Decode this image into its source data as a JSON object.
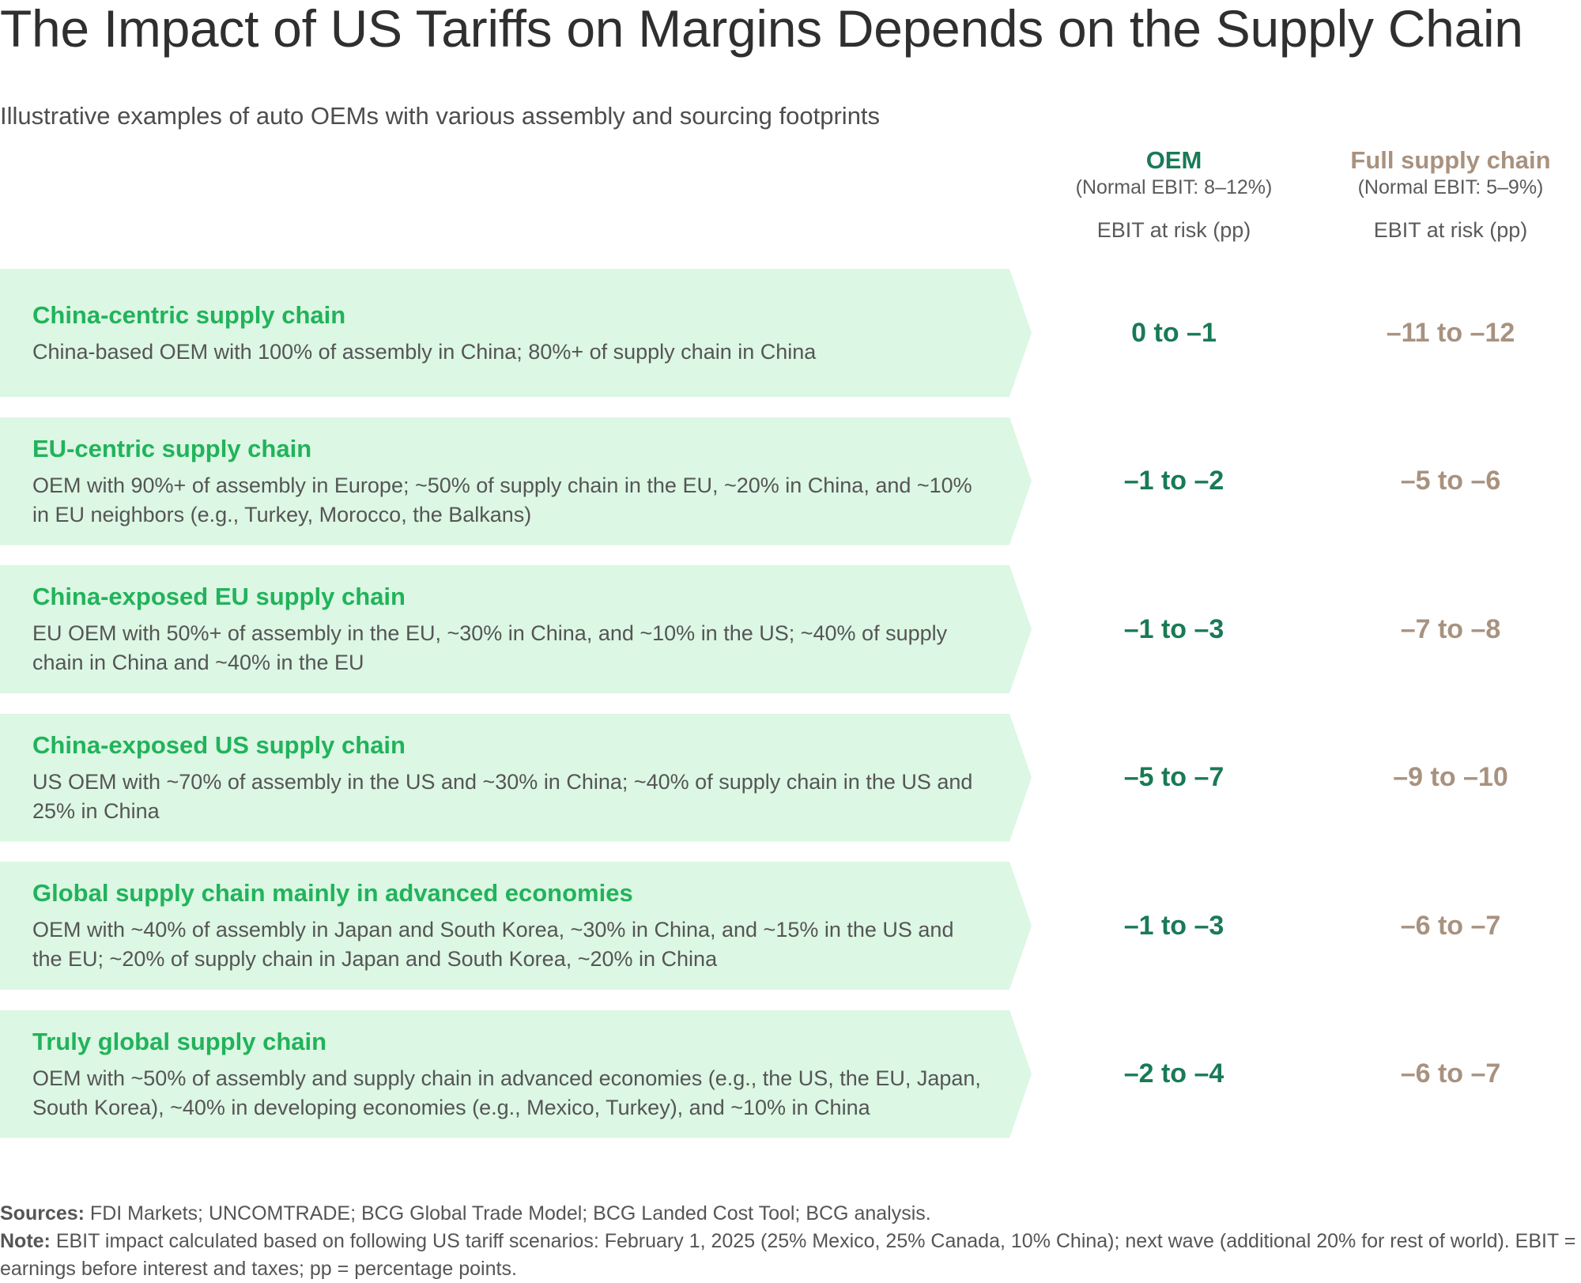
{
  "title": "The Impact of US Tariffs on Margins Depends on the Supply Chain",
  "subtitle": "Illustrative examples of auto OEMs with various assembly and sourcing footprints",
  "colors": {
    "oem": "#197a56",
    "full": "#a8927f",
    "row_title": "#21b35b",
    "band": "#dcf7e3"
  },
  "columns": [
    {
      "name": "OEM",
      "normal": "(Normal EBIT: 8–12%)",
      "metric": "EBIT at risk (pp)"
    },
    {
      "name": "Full supply chain",
      "normal": "(Normal EBIT: 5–9%)",
      "metric": "EBIT at risk (pp)"
    }
  ],
  "rows": [
    {
      "title": "China-centric supply chain",
      "desc": "China-based OEM with 100% of assembly in China; 80%+ of supply chain in China",
      "oem": "0 to –1",
      "full": "–11 to –12"
    },
    {
      "title": "EU-centric supply chain",
      "desc": "OEM with 90%+ of assembly in Europe; ~50% of supply chain in the EU, ~20% in China, and ~10% in EU neighbors (e.g., Turkey, Morocco, the Balkans)",
      "oem": "–1 to –2",
      "full": "–5 to –6"
    },
    {
      "title": "China-exposed EU supply chain",
      "desc": "EU OEM with 50%+ of assembly in the EU, ~30% in China, and ~10% in the US; ~40% of supply chain in China and ~40% in the EU",
      "oem": "–1 to –3",
      "full": "–7 to –8"
    },
    {
      "title": "China-exposed US supply chain",
      "desc": "US OEM with ~70% of assembly in the US and ~30% in China; ~40% of supply chain in the US and 25% in China",
      "oem": "–5 to –7",
      "full": "–9 to –10"
    },
    {
      "title": "Global supply chain mainly in advanced economies",
      "desc": "OEM with ~40% of assembly in Japan and South Korea, ~30% in China, and ~15% in the US and the EU; ~20% of supply chain in Japan and South Korea, ~20% in China",
      "oem": "–1 to –3",
      "full": "–6 to –7"
    },
    {
      "title": "Truly global supply chain",
      "desc": "OEM with ~50% of assembly and supply chain in advanced economies (e.g., the US, the EU, Japan, South Korea), ~40% in developing economies (e.g., Mexico, Turkey), and ~10% in China",
      "oem": "–2 to –4",
      "full": "–6 to –7"
    }
  ],
  "footer": {
    "sources_label": "Sources:",
    "sources_text": " FDI Markets; UNCOMTRADE; BCG Global Trade Model; BCG Landed Cost Tool; BCG analysis.",
    "note_label": "Note:",
    "note_text": " EBIT impact calculated based on following US tariff scenarios: February 1, 2025 (25% Mexico, 25% Canada, 10% China); next wave (additional 20% for rest of world). EBIT = earnings before interest and taxes; pp = percentage points."
  },
  "chart_data": {
    "type": "table",
    "title": "The Impact of US Tariffs on Margins Depends on the Supply Chain",
    "subtitle": "Illustrative examples of auto OEMs with various assembly and sourcing footprints",
    "columns": [
      "Supply chain archetype",
      "OEM EBIT at risk (pp)",
      "Full supply chain EBIT at risk (pp)"
    ],
    "column_notes": {
      "OEM": "Normal EBIT: 8–12%",
      "Full supply chain": "Normal EBIT: 5–9%"
    },
    "rows": [
      {
        "archetype": "China-centric supply chain",
        "oem_range": [
          0,
          -1
        ],
        "full_range": [
          -11,
          -12
        ]
      },
      {
        "archetype": "EU-centric supply chain",
        "oem_range": [
          -1,
          -2
        ],
        "full_range": [
          -5,
          -6
        ]
      },
      {
        "archetype": "China-exposed EU supply chain",
        "oem_range": [
          -1,
          -3
        ],
        "full_range": [
          -7,
          -8
        ]
      },
      {
        "archetype": "China-exposed US supply chain",
        "oem_range": [
          -5,
          -7
        ],
        "full_range": [
          -9,
          -10
        ]
      },
      {
        "archetype": "Global supply chain mainly in advanced economies",
        "oem_range": [
          -1,
          -3
        ],
        "full_range": [
          -6,
          -7
        ]
      },
      {
        "archetype": "Truly global supply chain",
        "oem_range": [
          -2,
          -4
        ],
        "full_range": [
          -6,
          -7
        ]
      }
    ]
  }
}
